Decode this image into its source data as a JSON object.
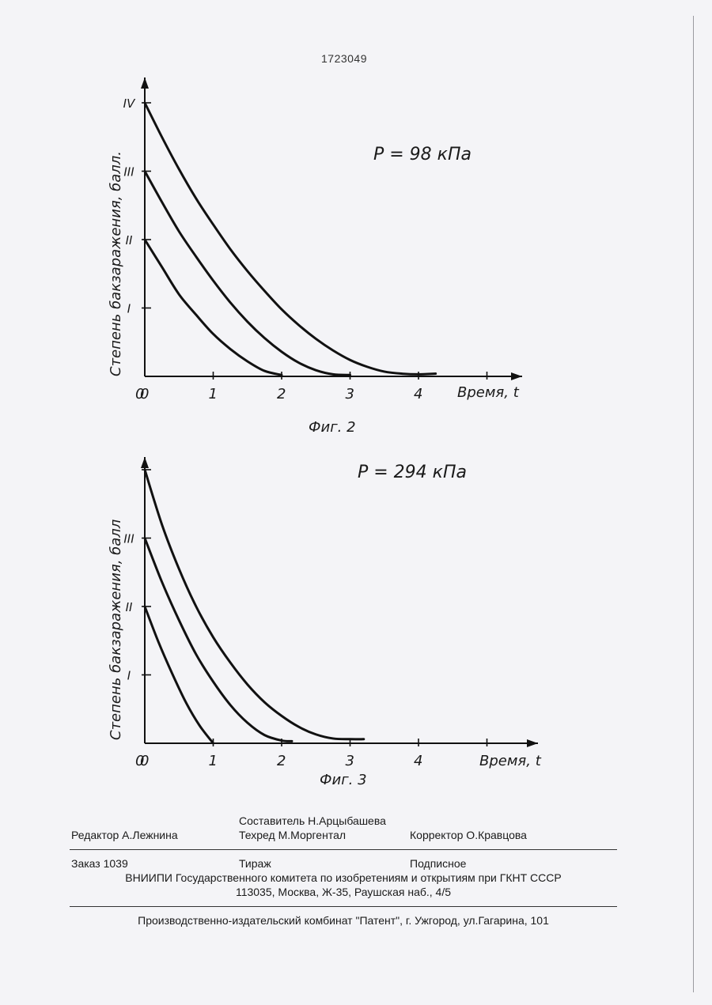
{
  "page": {
    "patent_number": "1723049"
  },
  "chart_data": [
    {
      "type": "line",
      "figure_label": "Фиг. 2",
      "annotation": "P = 98 кПа",
      "xlabel": "Время, t",
      "ylabel": "Степень бакзаражения, балл.",
      "x_ticks": [
        "0",
        "1",
        "2",
        "3",
        "4"
      ],
      "y_ticks": [
        "I",
        "II",
        "III",
        "IV"
      ],
      "xlim": [
        0,
        5.5
      ],
      "ylim": [
        0,
        4.4
      ],
      "series": [
        {
          "x": [
            0,
            0.25,
            0.5,
            0.75,
            1.0,
            1.25,
            1.5,
            1.75,
            2.0
          ],
          "y": [
            2.0,
            1.6,
            1.2,
            0.9,
            0.62,
            0.4,
            0.22,
            0.08,
            0.02
          ]
        },
        {
          "x": [
            0,
            0.25,
            0.5,
            0.75,
            1.0,
            1.25,
            1.5,
            1.75,
            2.0,
            2.25,
            2.5,
            2.75,
            3.0
          ],
          "y": [
            3.0,
            2.55,
            2.12,
            1.75,
            1.4,
            1.08,
            0.8,
            0.56,
            0.36,
            0.2,
            0.09,
            0.03,
            0.02
          ]
        },
        {
          "x": [
            0,
            0.25,
            0.5,
            0.75,
            1.0,
            1.25,
            1.5,
            1.75,
            2.0,
            2.25,
            2.5,
            2.75,
            3.0,
            3.25,
            3.5,
            3.75,
            4.0,
            4.25
          ],
          "y": [
            4.0,
            3.5,
            3.03,
            2.6,
            2.22,
            1.86,
            1.54,
            1.25,
            0.98,
            0.75,
            0.55,
            0.38,
            0.24,
            0.14,
            0.07,
            0.04,
            0.03,
            0.04
          ]
        }
      ]
    },
    {
      "type": "line",
      "figure_label": "Фиг. 3",
      "annotation": "P = 294 кПа",
      "xlabel": "Время, t",
      "ylabel": "Степень бакзаражения, балл",
      "x_ticks": [
        "0",
        "1",
        "2",
        "3",
        "4"
      ],
      "y_ticks": [
        "I",
        "II",
        "III"
      ],
      "xlim": [
        0,
        5.8
      ],
      "ylim": [
        0,
        4.2
      ],
      "series": [
        {
          "x": [
            0,
            0.2,
            0.4,
            0.6,
            0.8,
            1.0
          ],
          "y": [
            2.0,
            1.48,
            1.02,
            0.6,
            0.26,
            0.0
          ]
        },
        {
          "x": [
            0,
            0.25,
            0.5,
            0.75,
            1.0,
            1.25,
            1.5,
            1.75,
            2.0,
            2.15
          ],
          "y": [
            3.0,
            2.36,
            1.8,
            1.3,
            0.9,
            0.56,
            0.3,
            0.12,
            0.04,
            0.03
          ]
        },
        {
          "x": [
            0,
            0.25,
            0.5,
            0.75,
            1.0,
            1.25,
            1.5,
            1.75,
            2.0,
            2.25,
            2.5,
            2.75,
            3.0,
            3.2
          ],
          "y": [
            4.0,
            3.2,
            2.55,
            2.0,
            1.55,
            1.18,
            0.86,
            0.6,
            0.4,
            0.24,
            0.13,
            0.07,
            0.06,
            0.06
          ]
        }
      ]
    }
  ],
  "footer": {
    "sostavitel": "Составитель Н.Арцыбашева",
    "redaktor": "Редактор А.Лежнина",
    "tehred": "Техред М.Моргентал",
    "korrektor": "Корректор О.Кравцова",
    "zakaz": "Заказ 1039",
    "tirazh": "Тираж",
    "podpisnoe": "Подписное",
    "vniipi": "ВНИИПИ Государственного комитета по изобретениям и открытиям при ГКНТ СССР",
    "address": "113035, Москва, Ж-35, Раушская наб., 4/5",
    "kombinat": "Производственно-издательский комбинат \"Патент\", г. Ужгород, ул.Гагарина, 101"
  }
}
